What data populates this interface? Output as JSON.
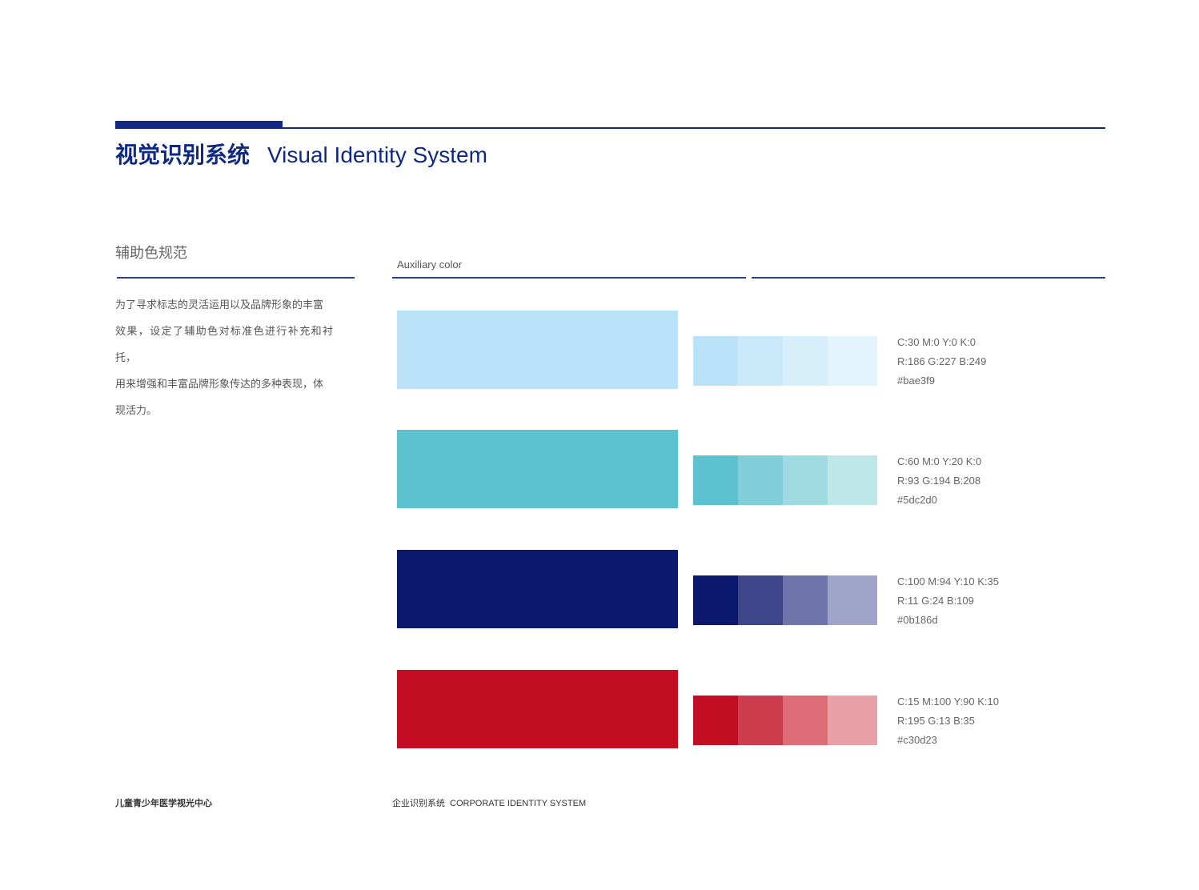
{
  "header": {
    "title_cn": "视觉识别系统",
    "title_en": "Visual Identity System",
    "accent": "#102a83"
  },
  "section": {
    "title": "辅助色规范",
    "lines": [
      "为了寻求标志的灵活运用以及品牌形象的丰富",
      "效果，设定了辅助色对标准色进行补充和衬托，",
      "用来增强和丰富品牌形象传达的多种表现，体",
      "现活力。"
    ]
  },
  "aux": {
    "label": "Auxiliary color"
  },
  "colors": [
    {
      "hex_value": "#bae3f9",
      "tints": [
        "#bae3f9",
        "#c9e9fa",
        "#d6effb",
        "#e3f4fc"
      ],
      "cmyk": "C:30  M:0  Y:0  K:0",
      "rgb": "R:186  G:227  B:249",
      "hex": "#bae3f9"
    },
    {
      "hex_value": "#5dc2d0",
      "tints": [
        "#5dc2d0",
        "#80ced8",
        "#a0dbe2",
        "#bee7ea"
      ],
      "cmyk": "C:60  M:0  Y:20  K:0",
      "rgb": "R:93  G:194  B:208",
      "hex": "#5dc2d0"
    },
    {
      "hex_value": "#0b186d",
      "tints": [
        "#0b186d",
        "#3d478a",
        "#6e75aa",
        "#a0a3c8"
      ],
      "cmyk": "C:100  M:94  Y:10  K:35",
      "rgb": "R:11  G:24  B:109",
      "hex": "#0b186d"
    },
    {
      "hex_value": "#c30d23",
      "tints": [
        "#c30d23",
        "#cf3c4d",
        "#de6d78",
        "#e9a0a6"
      ],
      "cmyk": "C:15  M:100  Y:90  K:10",
      "rgb": "R:195  G:13  B:35",
      "hex": "#c30d23"
    }
  ],
  "footer": {
    "left": "儿童青少年医学视光中心",
    "mid_cn": "企业识别系统",
    "mid_en": "CORPORATE IDENTITY SYSTEM"
  }
}
